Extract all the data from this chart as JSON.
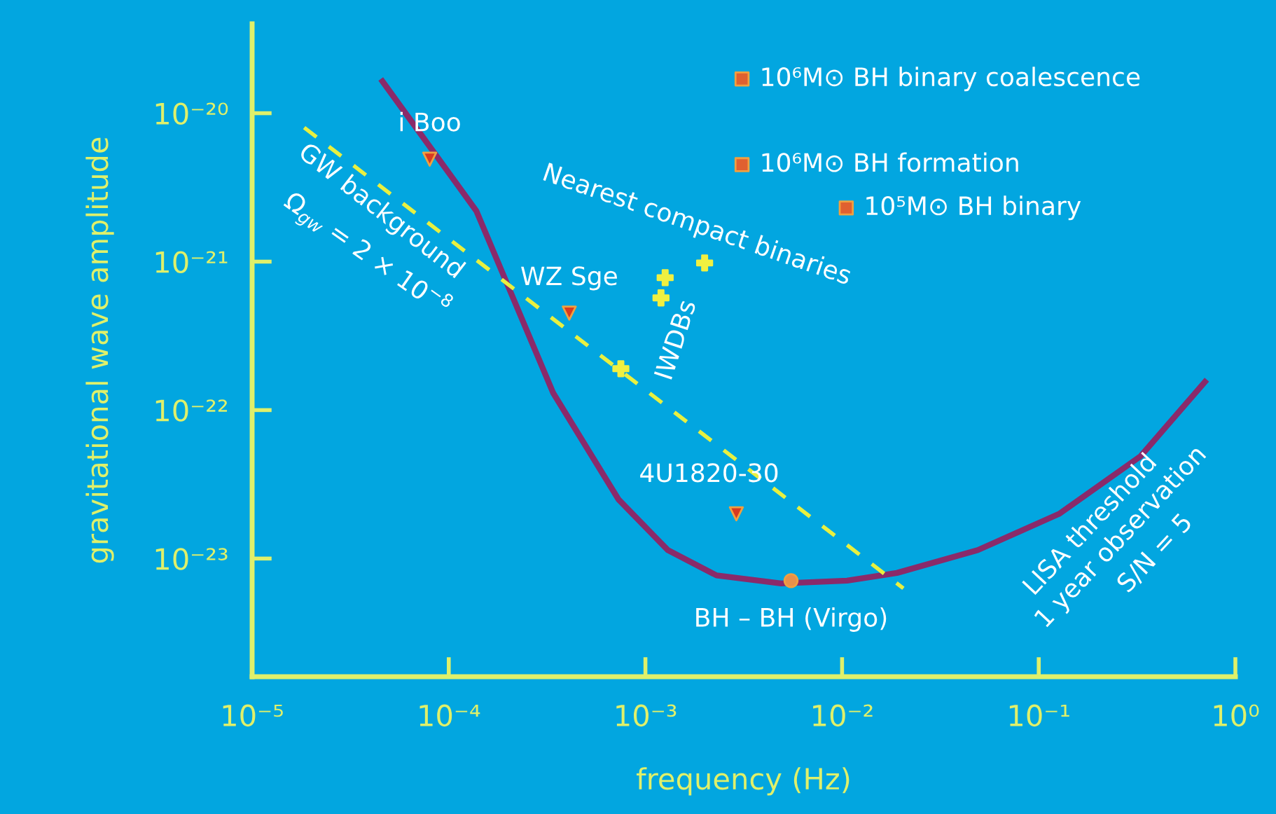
{
  "chart_data": {
    "type": "line",
    "xlabel": "frequency (Hz)",
    "ylabel": "gravitational wave amplitude",
    "log": "xy",
    "grid": false,
    "legend": false,
    "xlim": [
      1e-05,
      1
    ],
    "ylim": [
      1.6e-24,
      4e-20
    ],
    "xticks": [
      {
        "value": 1e-05,
        "label": "10⁻⁵"
      },
      {
        "value": 0.0001,
        "label": "10⁻⁴"
      },
      {
        "value": 0.001,
        "label": "10⁻³"
      },
      {
        "value": 0.01,
        "label": "10⁻²"
      },
      {
        "value": 0.1,
        "label": "10⁻¹"
      },
      {
        "value": 1,
        "label": "10⁰"
      }
    ],
    "yticks": [
      {
        "value": 1e-23,
        "label": "10⁻²³"
      },
      {
        "value": 1e-22,
        "label": "10⁻²²"
      },
      {
        "value": 1e-21,
        "label": "10⁻²¹"
      },
      {
        "value": 1e-20,
        "label": "10⁻²⁰"
      }
    ],
    "series": [
      {
        "color": "#8a2a6a",
        "marker": "none",
        "line_style": "solid",
        "x": [
          4.6e-05,
          0.000138,
          0.00034,
          0.00073,
          0.0013,
          0.0023,
          0.0049,
          0.0106,
          0.019,
          0.049,
          0.127,
          0.33,
          0.7
        ],
        "values": [
          1.64e-20,
          2.2e-21,
          1.3e-22,
          2.5e-23,
          1.14e-23,
          7.7e-24,
          6.8e-24,
          7.1e-24,
          8e-24,
          1.14e-23,
          2e-23,
          4.9e-23,
          1.55e-22
        ]
      },
      {
        "color": "#e8f040",
        "marker": "none",
        "line_style": "dashed",
        "x": [
          1.84e-05,
          0.0205
        ],
        "values": [
          8e-21,
          6.3e-24
        ]
      },
      {
        "type": "scatter",
        "color": "#d83a20",
        "marker": "triangle",
        "x": [
          8e-05,
          0.00041,
          0.0029
        ],
        "values": [
          4.9e-21,
          4.5e-22,
          2e-23
        ]
      },
      {
        "type": "scatter",
        "color": "#f0f040",
        "marker": "cross",
        "x": [
          0.00075,
          0.0012,
          0.00126,
          0.002
        ],
        "values": [
          1.9e-22,
          5.7e-22,
          7.8e-22,
          9.8e-22
        ]
      },
      {
        "type": "scatter",
        "color": "#e8904a",
        "marker": "circle",
        "x": [
          0.0055
        ],
        "values": [
          7.1e-24
        ]
      },
      {
        "type": "scatter",
        "color": "#e06030",
        "marker": "square",
        "x": [
          0.0031,
          0.0031,
          0.0105
        ],
        "values": [
          1.7e-20,
          4.5e-21,
          2.3e-21
        ]
      }
    ],
    "annotations": [
      {
        "text": "i Boo",
        "x": 8e-05,
        "y": 4.9e-21
      },
      {
        "text": "WZ Sge",
        "x": 0.00041,
        "y": 4.5e-22
      },
      {
        "text": "4U1820-30",
        "x": 0.0029,
        "y": 2e-23
      },
      {
        "text": "BH – BH (Virgo)",
        "x": 0.0055,
        "y": 7.1e-24
      },
      {
        "text": "10⁶M⊙ BH binary coalescence",
        "x": 0.0031,
        "y": 1.7e-20
      },
      {
        "text": "10⁶M⊙ BH formation",
        "x": 0.0031,
        "y": 4.5e-21
      },
      {
        "text": "10⁵M⊙ BH binary",
        "x": 0.0105,
        "y": 2.3e-21
      },
      "IWDBs",
      "Nearest compact binaries",
      "GW background",
      "Ω$_{gw}$ = 2 × 10$^{−8}$",
      "LISA threshold",
      "1 year observation",
      "S/N = 5"
    ]
  }
}
